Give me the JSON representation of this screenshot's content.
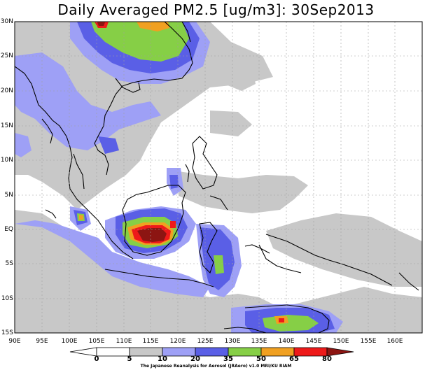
{
  "title": "Daily Averaged PM2.5 [ug/m3]: 30Sep2013",
  "map": {
    "lat_labels": [
      "30N",
      "25N",
      "20N",
      "15N",
      "10N",
      "5N",
      "EQ",
      "5S",
      "10S",
      "15S"
    ],
    "lon_labels": [
      "90E",
      "95E",
      "100E",
      "105E",
      "110E",
      "115E",
      "120E",
      "125E",
      "130E",
      "135E",
      "140E",
      "145E",
      "150E",
      "155E",
      "160E"
    ],
    "grid": true
  },
  "colorbar": {
    "levels": [
      "0",
      "5",
      "10",
      "20",
      "35",
      "50",
      "65",
      "80"
    ],
    "colors": [
      "#ffffff",
      "#c8c8c8",
      "#9ea0f6",
      "#5a5fe6",
      "#86cf46",
      "#f0a021",
      "#ee1a1a",
      "#8c1512"
    ]
  },
  "credit": "The Japanese Reanalysis for Aerosol (JRAero) v1.0 MRI/KU RIAM"
}
